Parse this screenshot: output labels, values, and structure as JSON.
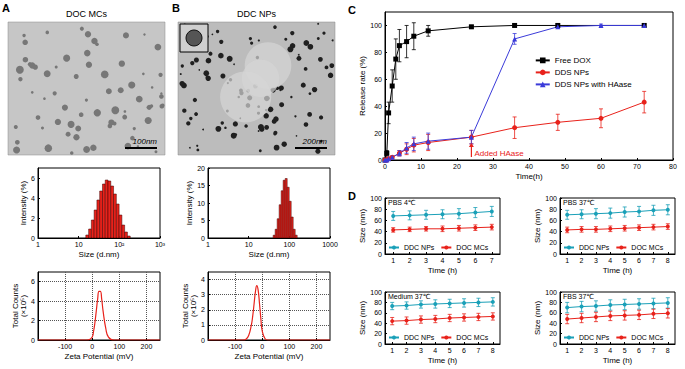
{
  "chart_data": [
    {
      "panel": "A",
      "type": "image",
      "title": "DOC MCs",
      "scale_bar": "100nm"
    },
    {
      "type": "histogram",
      "xlabel": "Size (d.nm)",
      "ylabel": "Intensity (%)",
      "log": "x",
      "bins": [
        15,
        17.6,
        20.5,
        24,
        28.1,
        32.9,
        38.5,
        45,
        52.7,
        61.6,
        72.1,
        84.4,
        98.7,
        115.5,
        135,
        158,
        185
      ],
      "values": [
        0.3,
        0.9,
        1.8,
        2.8,
        3.8,
        4.7,
        5.4,
        5.8,
        5.7,
        5.2,
        4.4,
        3.4,
        2.3,
        1.3,
        0.6,
        0.2
      ],
      "color": "#e8221b",
      "xlim": [
        1,
        1000
      ],
      "xticks": [
        1,
        10,
        {
          "value": 100,
          "label": "10²"
        },
        {
          "value": 1000,
          "label": "10³"
        }
      ],
      "ylim": [
        0,
        7
      ],
      "yticks": [
        0,
        2,
        4,
        6
      ],
      "grid": false
    },
    {
      "type": "line",
      "xlabel": "Zeta Potential (mV)",
      "ylabel": "Total Counts\n(×10⁵)",
      "x": [
        -200,
        -30,
        -20,
        -10,
        0,
        5,
        10,
        15,
        20,
        25,
        30,
        35,
        40,
        50,
        60,
        80,
        250
      ],
      "values": [
        0,
        0,
        0,
        0.05,
        0.3,
        0.9,
        1.8,
        3.0,
        4.2,
        5.0,
        5.0,
        4.2,
        3.0,
        1.2,
        0.3,
        0,
        0
      ],
      "color": "#e8221b",
      "xlim": [
        -200,
        250
      ],
      "xticks": [
        -100,
        0,
        100,
        200
      ],
      "ylim": [
        0,
        7
      ],
      "yticks": [
        0,
        2,
        4,
        6
      ],
      "grid": true
    },
    {
      "panel": "B",
      "type": "image",
      "title": "DDC NPs",
      "scale_bar": "200nm"
    },
    {
      "type": "histogram",
      "xlabel": "Size (d.nm)",
      "ylabel": "Intensity (%)",
      "log": "x",
      "bins": [
        40,
        44.8,
        50.2,
        56.2,
        63,
        70.5,
        79,
        88.5,
        99.1,
        111,
        124.3,
        139.2,
        155.9
      ],
      "values": [
        0.8,
        2.5,
        5.5,
        9.5,
        13.5,
        16.5,
        17,
        14.5,
        10.5,
        6,
        2.5,
        0.8
      ],
      "color": "#e8221b",
      "xlim": [
        1,
        1000
      ],
      "xticks": [
        1,
        10,
        100,
        1000
      ],
      "ylim": [
        0,
        20
      ],
      "yticks": [
        0,
        5,
        10,
        15,
        20
      ],
      "grid": false
    },
    {
      "type": "line",
      "xlabel": "Zeta Potential (mV)",
      "ylabel": "Total Counts\n(×10⁵)",
      "x": [
        -200,
        -70,
        -60,
        -50,
        -40,
        -35,
        -30,
        -25,
        -20,
        -15,
        -10,
        -5,
        0,
        10,
        20,
        250
      ],
      "values": [
        0,
        0,
        0.05,
        0.3,
        1.0,
        1.6,
        2.4,
        3.2,
        3.6,
        3.3,
        2.4,
        1.4,
        0.6,
        0.1,
        0,
        0
      ],
      "color": "#e8221b",
      "xlim": [
        -200,
        250
      ],
      "xticks": [
        -100,
        0,
        100,
        200
      ],
      "ylim": [
        0,
        4.5
      ],
      "yticks": [
        0,
        1,
        2,
        3,
        4
      ],
      "grid": true
    },
    {
      "panel": "C",
      "type": "line",
      "xlabel": "Time(h)",
      "ylabel": "Release rate (%)",
      "xlim": [
        0,
        80
      ],
      "xticks": [
        0,
        10,
        20,
        30,
        40,
        50,
        60,
        70,
        80
      ],
      "ylim": [
        0,
        110
      ],
      "yticks": [
        0,
        20,
        40,
        60,
        80,
        100
      ],
      "grid": false,
      "legend": "center",
      "series": [
        {
          "name": "Free DOX",
          "color": "#000000",
          "marker": "square",
          "x": [
            0,
            0.5,
            1,
            2,
            3,
            4,
            6,
            8,
            12,
            24,
            36,
            48,
            72
          ],
          "values": [
            0,
            5,
            35,
            55,
            75,
            85,
            88,
            92,
            96,
            99,
            100,
            100,
            100
          ],
          "errors": [
            0,
            2,
            8,
            12,
            15,
            12,
            12,
            10,
            4,
            1,
            1,
            1,
            1
          ]
        },
        {
          "name": "DDS NPs",
          "color": "#e8221b",
          "marker": "circle",
          "x": [
            0,
            0.5,
            1,
            2,
            4,
            6,
            8,
            12,
            24,
            36,
            48,
            60,
            72
          ],
          "values": [
            0,
            0,
            1,
            2,
            5,
            8,
            11,
            13,
            17,
            24,
            28,
            31,
            43
          ],
          "errors": [
            0,
            0,
            1,
            1,
            2,
            4,
            5,
            6,
            5,
            8,
            6,
            7,
            8
          ]
        },
        {
          "name": "DDS NPs with HAase",
          "color": "#3b3bd9",
          "marker": "triangle",
          "x": [
            0,
            0.5,
            1,
            2,
            4,
            6,
            8,
            12,
            24,
            36,
            48,
            60,
            72
          ],
          "values": [
            0,
            0,
            1,
            2,
            5,
            9,
            12,
            14,
            17,
            90,
            99,
            100,
            100
          ],
          "errors": [
            0,
            0,
            1,
            1,
            2,
            4,
            5,
            6,
            5,
            4,
            1,
            1,
            1
          ]
        }
      ],
      "annotations": [
        {
          "text": "Added HAase",
          "x": 24,
          "color": "#e8221b"
        }
      ]
    },
    {
      "panel": "D",
      "type": "line",
      "title": "PBS 4℃",
      "xlabel": "Time (h)",
      "ylabel": "Size (nm)",
      "categories": [
        "1",
        "2",
        "3",
        "4",
        "5",
        "6",
        "7"
      ],
      "ylim": [
        0,
        100
      ],
      "yticks": [
        0,
        20,
        40,
        60,
        80,
        100
      ],
      "grid": false,
      "legend": "lower left",
      "series": [
        {
          "name": "DDC NPs",
          "color": "#1aa0b8",
          "marker": "circle",
          "values": [
            68,
            69,
            70,
            71,
            72,
            74,
            76
          ],
          "errors": [
            8,
            8,
            8,
            8,
            9,
            9,
            9
          ]
        },
        {
          "name": "DOC MCs",
          "color": "#e8221b",
          "marker": "circle",
          "values": [
            43,
            44,
            45,
            45,
            46,
            47,
            48
          ],
          "errors": [
            4,
            4,
            4,
            5,
            5,
            5,
            5
          ]
        }
      ]
    },
    {
      "type": "line",
      "title": "PBS 37℃",
      "xlabel": "Time (h)",
      "ylabel": "Size (nm)",
      "categories": [
        "1",
        "2",
        "3",
        "4",
        "5",
        "6",
        "7",
        "8"
      ],
      "ylim": [
        0,
        100
      ],
      "yticks": [
        0,
        20,
        40,
        60,
        80,
        100
      ],
      "grid": false,
      "legend": "lower left",
      "series": [
        {
          "name": "DDC NPs",
          "color": "#1aa0b8",
          "marker": "circle",
          "values": [
            70,
            71,
            72,
            73,
            75,
            76,
            78,
            79
          ],
          "errors": [
            8,
            8,
            9,
            9,
            9,
            9,
            9,
            9
          ]
        },
        {
          "name": "DOC MCs",
          "color": "#e8221b",
          "marker": "circle",
          "values": [
            43,
            44,
            44,
            45,
            46,
            47,
            48,
            49
          ],
          "errors": [
            5,
            5,
            5,
            5,
            5,
            5,
            5,
            5
          ]
        }
      ]
    },
    {
      "type": "line",
      "title": "Medium 37℃",
      "xlabel": "Time (h)",
      "ylabel": "Size (nm)",
      "categories": [
        "1",
        "2",
        "3",
        "4",
        "5",
        "6",
        "7",
        "8"
      ],
      "ylim": [
        0,
        100
      ],
      "yticks": [
        0,
        20,
        40,
        60,
        80,
        100
      ],
      "grid": false,
      "legend": "lower left",
      "series": [
        {
          "name": "DDC NPs",
          "color": "#1aa0b8",
          "marker": "circle",
          "values": [
            73,
            74,
            76,
            77,
            78,
            79,
            80,
            81
          ],
          "errors": [
            7,
            7,
            7,
            8,
            8,
            8,
            8,
            8
          ]
        },
        {
          "name": "DOC MCs",
          "color": "#e8221b",
          "marker": "circle",
          "values": [
            44,
            45,
            47,
            48,
            50,
            51,
            52,
            53
          ],
          "errors": [
            7,
            7,
            7,
            7,
            7,
            7,
            7,
            7
          ]
        }
      ]
    },
    {
      "type": "line",
      "title": "FBS 37℃",
      "xlabel": "Time (h)",
      "ylabel": "Size (nm)",
      "categories": [
        "1",
        "2",
        "3",
        "4",
        "5",
        "6",
        "7",
        "8"
      ],
      "ylim": [
        0,
        100
      ],
      "yticks": [
        0,
        20,
        40,
        60,
        80,
        100
      ],
      "grid": false,
      "legend": "lower left",
      "series": [
        {
          "name": "DDC NPs",
          "color": "#1aa0b8",
          "marker": "circle",
          "values": [
            70,
            72,
            73,
            75,
            76,
            77,
            78,
            79
          ],
          "errors": [
            10,
            10,
            10,
            10,
            10,
            10,
            10,
            10
          ]
        },
        {
          "name": "DOC MCs",
          "color": "#e8221b",
          "marker": "circle",
          "values": [
            48,
            50,
            52,
            54,
            55,
            56,
            58,
            59
          ],
          "errors": [
            9,
            9,
            9,
            9,
            9,
            9,
            9,
            9
          ]
        }
      ]
    }
  ]
}
